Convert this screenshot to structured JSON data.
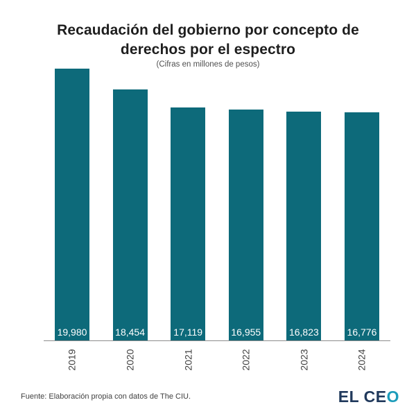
{
  "page": {
    "title_line1": "Recaudación del gobierno por concepto de",
    "title_line2": "derechos por el espectro",
    "subtitle": "(Cifras en millones de pesos)"
  },
  "chart_data": {
    "type": "bar",
    "title": "Recaudación del gobierno por concepto de derechos por el espectro",
    "subtitle": "(Cifras en millones de pesos)",
    "categories": [
      "2019",
      "2020",
      "2021",
      "2022",
      "2023",
      "2024"
    ],
    "values": [
      19980,
      18454,
      17119,
      16955,
      16823,
      16776
    ],
    "value_labels": [
      "19,980",
      "18,454",
      "17,119",
      "16,955",
      "16,823",
      "16,776"
    ],
    "xlabel": "",
    "ylabel": "",
    "ylim": [
      0,
      19980
    ],
    "grid": false,
    "legend": "none",
    "bar_color": "#0d6a7a",
    "value_label_color": "#ffffff",
    "axis_line_color": "#8c8c8c",
    "tick_label_color": "#404040",
    "tick_label_rotation": -90
  },
  "footer": {
    "source": "Fuente: Elaboración propia con datos de The CIU.",
    "logo_text_primary": "EL CE",
    "logo_text_accent": "O",
    "logo_primary_color": "#20395c",
    "logo_accent_color": "#1d9cba"
  }
}
